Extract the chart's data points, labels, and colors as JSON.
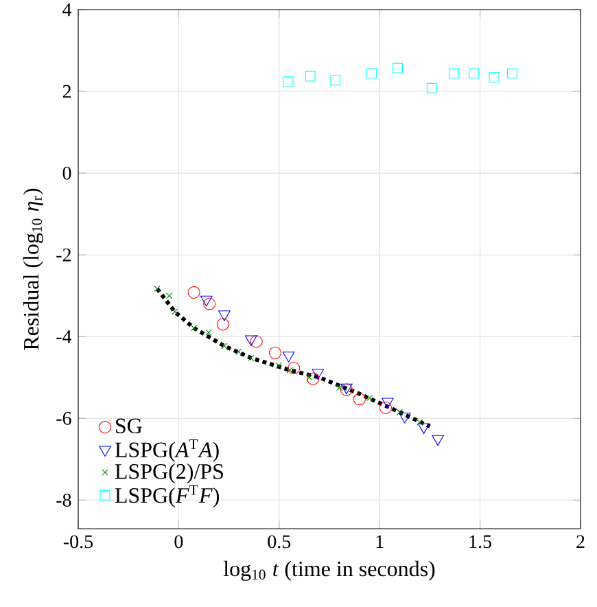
{
  "chart_data": {
    "type": "scatter",
    "xlabel": "log$_{10}$ *t* (time in seconds)",
    "ylabel": "Residual (log$_{10}$ *η*$_{r}$)",
    "xlim": [
      -0.5,
      2
    ],
    "ylim": [
      -8.7,
      4
    ],
    "xticks": [
      -0.5,
      0,
      0.5,
      1,
      1.5,
      2
    ],
    "yticks": [
      -8,
      -6,
      -4,
      -2,
      0,
      2,
      4
    ],
    "grid": true,
    "legend": "bottom left",
    "series": [
      {
        "name": "SG",
        "color": "#ff0000",
        "marker": "circle",
        "x": [
          0.076,
          0.153,
          0.22,
          0.387,
          0.48,
          0.573,
          0.669,
          0.835,
          0.9,
          1.03
        ],
        "values": [
          -2.92,
          -3.2,
          -3.7,
          -4.12,
          -4.4,
          -4.77,
          -5.03,
          -5.3,
          -5.53,
          -5.74
        ]
      },
      {
        "name": "LSPG(*A*$^{T}$*A*)",
        "color": "#0000ff",
        "marker": "triangle",
        "x": [
          0.138,
          0.227,
          0.36,
          0.547,
          0.693,
          0.835,
          1.04,
          1.125,
          1.22,
          1.29
        ],
        "values": [
          -3.09,
          -3.45,
          -4.06,
          -4.46,
          -4.88,
          -5.24,
          -5.59,
          -5.95,
          -6.21,
          -6.5
        ]
      },
      {
        "name": "LSPG(2)/PS",
        "color": "#008000",
        "marker": "cross",
        "x": [
          -0.107,
          -0.047,
          -0.02,
          0.076,
          0.149,
          0.227,
          0.298,
          0.36,
          0.498,
          0.553,
          0.65,
          0.8,
          0.95,
          1.1,
          1.2
        ],
        "values": [
          -2.83,
          -3.0,
          -3.39,
          -3.79,
          -3.9,
          -4.23,
          -4.37,
          -4.52,
          -4.71,
          -4.82,
          -5.0,
          -5.25,
          -5.5,
          -5.85,
          -6.1
        ]
      },
      {
        "name": "LSPG(*F*$^{T}$*F*)",
        "color": "#00ffff",
        "marker": "square",
        "x": [
          0.545,
          0.655,
          0.78,
          0.96,
          1.09,
          1.26,
          1.37,
          1.47,
          1.57,
          1.66
        ],
        "values": [
          2.24,
          2.37,
          2.27,
          2.44,
          2.57,
          2.08,
          2.44,
          2.44,
          2.34,
          2.44
        ]
      },
      {
        "type": "line",
        "color": "#000000",
        "line_style": "dotted",
        "marker": "none",
        "x": [
          -0.107,
          -0.02,
          0.076,
          0.227,
          0.36,
          0.553,
          0.7,
          0.9,
          1.1,
          1.25
        ],
        "values": [
          -2.83,
          -3.39,
          -3.79,
          -4.23,
          -4.52,
          -4.82,
          -5.0,
          -5.4,
          -5.85,
          -6.2
        ]
      }
    ]
  }
}
